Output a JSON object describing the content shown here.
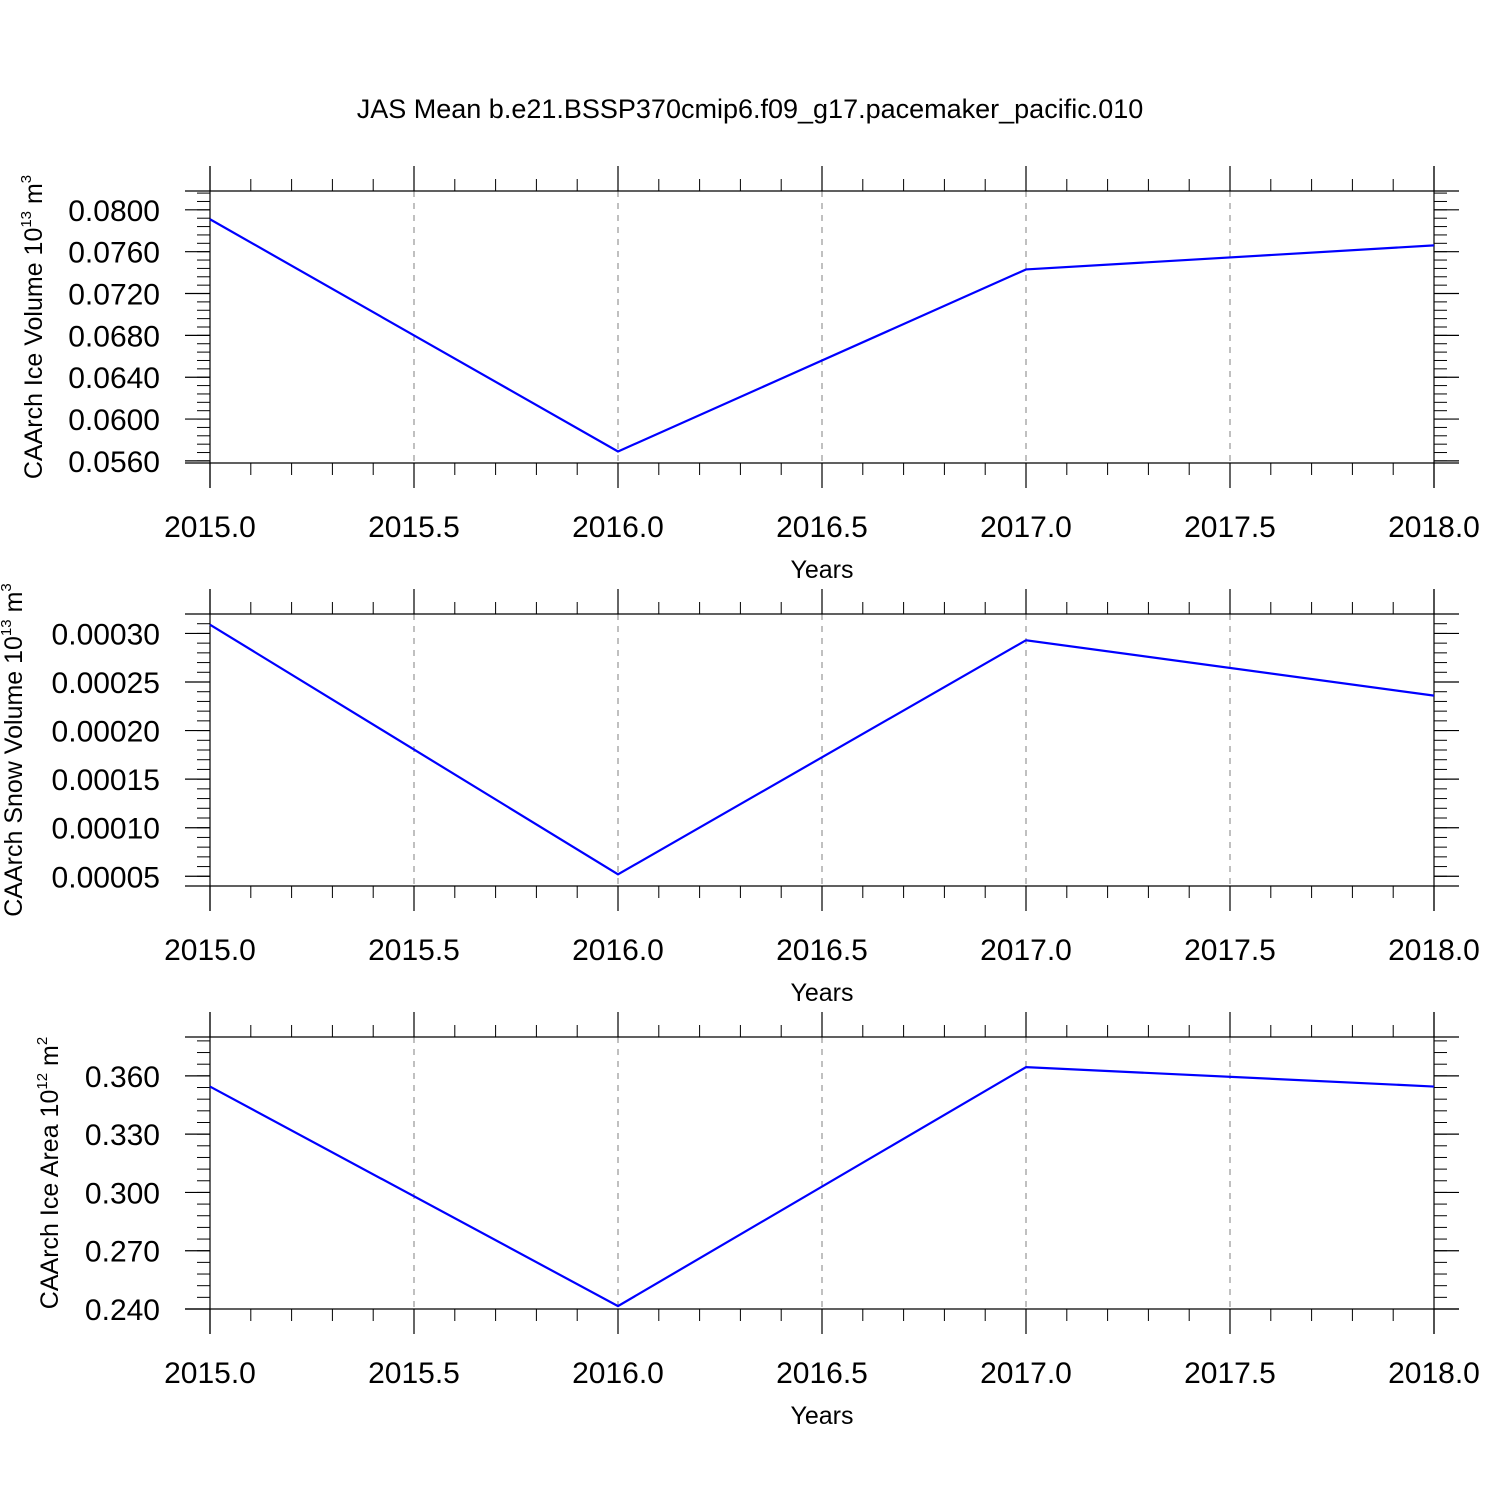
{
  "title": "JAS Mean b.e21.BSSP370cmip6.f09_g17.pacemaker_pacific.010",
  "colors": {
    "line": "#0000ff",
    "axis": "#000000",
    "grid": "#808080"
  },
  "chart_data": [
    {
      "type": "line",
      "ylabel": "CAArch Ice Volume 10",
      "ylabel_exp": "13",
      "ylabel_unit": " m",
      "ylabel_unit_exp": "3",
      "xlabel": "Years",
      "xlim": [
        2015.0,
        2018.0
      ],
      "ylim": [
        0.0558,
        0.0818
      ],
      "xticks": [
        2015.0,
        2015.5,
        2016.0,
        2016.5,
        2017.0,
        2017.5,
        2018.0
      ],
      "xtick_labels": [
        "2015.0",
        "2015.5",
        "2016.0",
        "2016.5",
        "2017.0",
        "2017.5",
        "2018.0"
      ],
      "yticks": [
        0.056,
        0.06,
        0.064,
        0.068,
        0.072,
        0.076,
        0.08
      ],
      "ytick_labels": [
        "0.0560",
        "0.0600",
        "0.0640",
        "0.0680",
        "0.0720",
        "0.0760",
        "0.0800"
      ],
      "yminor_step": 0.0008,
      "grid": "vertical dashed",
      "series": [
        {
          "x": [
            2015,
            2016,
            2017,
            2018
          ],
          "values": [
            0.0791,
            0.0569,
            0.0743,
            0.0766
          ]
        }
      ]
    },
    {
      "type": "line",
      "ylabel": "CAArch Snow Volume 10",
      "ylabel_exp": "13",
      "ylabel_unit": " m",
      "ylabel_unit_exp": "3",
      "xlabel": "Years",
      "xlim": [
        2015.0,
        2018.0
      ],
      "ylim": [
        4e-05,
        0.00032
      ],
      "xticks": [
        2015.0,
        2015.5,
        2016.0,
        2016.5,
        2017.0,
        2017.5,
        2018.0
      ],
      "xtick_labels": [
        "2015.0",
        "2015.5",
        "2016.0",
        "2016.5",
        "2017.0",
        "2017.5",
        "2018.0"
      ],
      "yticks": [
        5e-05,
        0.0001,
        0.00015,
        0.0002,
        0.00025,
        0.0003
      ],
      "ytick_labels": [
        "0.00005",
        "0.00010",
        "0.00015",
        "0.00020",
        "0.00025",
        "0.00030"
      ],
      "yminor_step": 1e-05,
      "grid": "vertical dashed",
      "series": [
        {
          "x": [
            2015,
            2016,
            2017,
            2018
          ],
          "values": [
            0.000309,
            5.2e-05,
            0.000293,
            0.000236
          ]
        }
      ]
    },
    {
      "type": "line",
      "ylabel": "CAArch Ice Area 10",
      "ylabel_exp": "12",
      "ylabel_unit": " m",
      "ylabel_unit_exp": "2",
      "xlabel": "Years",
      "xlim": [
        2015.0,
        2018.0
      ],
      "ylim": [
        0.24,
        0.38
      ],
      "xticks": [
        2015.0,
        2015.5,
        2016.0,
        2016.5,
        2017.0,
        2017.5,
        2018.0
      ],
      "xtick_labels": [
        "2015.0",
        "2015.5",
        "2016.0",
        "2016.5",
        "2017.0",
        "2017.5",
        "2018.0"
      ],
      "yticks": [
        0.24,
        0.27,
        0.3,
        0.33,
        0.36
      ],
      "ytick_labels": [
        "0.240",
        "0.270",
        "0.300",
        "0.330",
        "0.360"
      ],
      "yminor_step": 0.006,
      "grid": "vertical dashed",
      "series": [
        {
          "x": [
            2015,
            2016,
            2017,
            2018
          ],
          "values": [
            0.3545,
            0.2415,
            0.3645,
            0.3545
          ]
        }
      ]
    }
  ]
}
